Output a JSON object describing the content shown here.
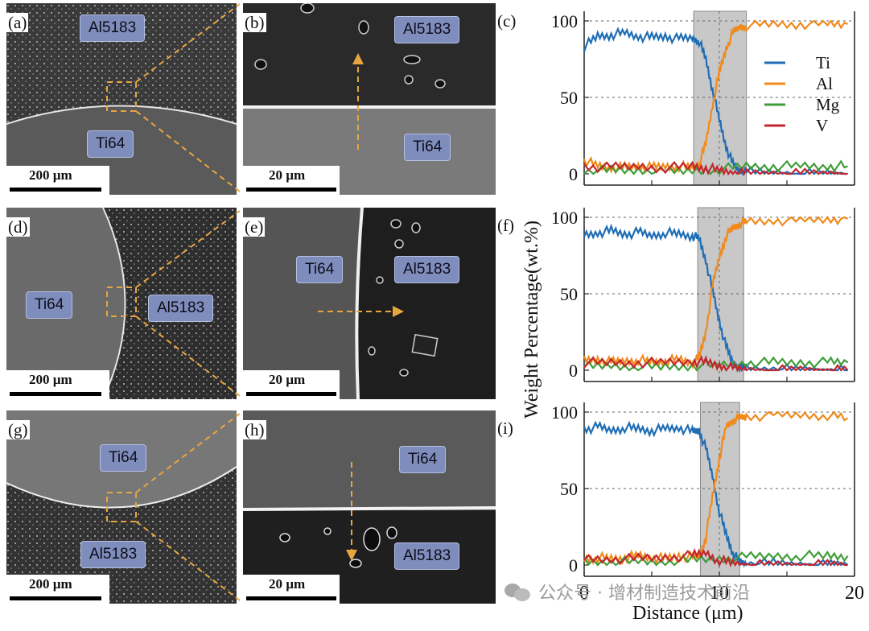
{
  "panels": {
    "a": {
      "label": "(a)",
      "tags": [
        "Al5183",
        "Ti64"
      ],
      "scale": "200 µm"
    },
    "b": {
      "label": "(b)",
      "tags": [
        "Al5183",
        "Ti64"
      ],
      "scale": "20 µm"
    },
    "c": {
      "label": "(c)"
    },
    "d": {
      "label": "(d)",
      "tags": [
        "Ti64",
        "Al5183"
      ],
      "scale": "200 µm"
    },
    "e": {
      "label": "(e)",
      "tags": [
        "Ti64",
        "Al5183"
      ],
      "scale": "20 µm"
    },
    "f": {
      "label": "(f)"
    },
    "g": {
      "label": "(g)",
      "tags": [
        "Ti64",
        "Al5183"
      ],
      "scale": "200 µm"
    },
    "h": {
      "label": "(h)",
      "tags": [
        "Ti64",
        "Al5183"
      ],
      "scale": "20 µm"
    },
    "i": {
      "label": "(i)"
    }
  },
  "axes": {
    "ylabel": "Weight Percentage(wt.%)",
    "xlabel": "Distance (μm)",
    "yticks": [
      "0",
      "50",
      "100"
    ],
    "xticks": [
      "0",
      "10",
      "20"
    ]
  },
  "watermark": "公众号 · 增材制造技术前沿",
  "colors": {
    "Ti": "#1f6db5",
    "Al": "#f08a1c",
    "Mg": "#3f9e3a",
    "V": "#c1272d",
    "band": "#c8c8c8",
    "tag": "#7f8dbd",
    "dash": "#e8a640"
  },
  "chart_data": [
    {
      "type": "line",
      "panel": "(c)",
      "xlim": [
        0,
        20
      ],
      "ylim": [
        0,
        100
      ],
      "grid": "dashed at 50 and 100",
      "legend": "top-right",
      "shaded_band": [
        8.1,
        12.0
      ],
      "series": [
        {
          "name": "Ti",
          "x": [
            0,
            1,
            2,
            3,
            4,
            5,
            6,
            7,
            8,
            8.5,
            9,
            9.5,
            10,
            10.5,
            11,
            11.5,
            12,
            14,
            16,
            18,
            19.5
          ],
          "y": [
            83,
            90,
            91,
            92,
            90,
            89,
            90,
            88,
            89,
            87,
            75,
            55,
            35,
            18,
            6,
            2,
            1,
            1,
            0,
            0,
            0
          ]
        },
        {
          "name": "Al",
          "x": [
            0,
            1,
            2,
            3,
            4,
            5,
            6,
            7,
            8,
            8.5,
            9,
            9.5,
            10,
            10.5,
            11,
            11.5,
            12,
            14,
            16,
            18,
            19.5
          ],
          "y": [
            9,
            5,
            4,
            4,
            5,
            4,
            5,
            5,
            4,
            6,
            20,
            45,
            66,
            82,
            92,
            96,
            97,
            98,
            98,
            98,
            98
          ]
        },
        {
          "name": "Mg",
          "x": [
            0,
            2,
            4,
            6,
            8,
            10,
            12,
            14,
            16,
            18,
            19.5
          ],
          "y": [
            2,
            2,
            2,
            1,
            2,
            3,
            5,
            5,
            5,
            5,
            5
          ]
        },
        {
          "name": "V",
          "x": [
            0,
            2,
            4,
            6,
            8,
            9,
            10,
            11,
            12,
            14,
            16,
            18,
            19.5
          ],
          "y": [
            5,
            4,
            5,
            4,
            5,
            4,
            2,
            1,
            0,
            0,
            0,
            0,
            0
          ]
        }
      ]
    },
    {
      "type": "line",
      "panel": "(f)",
      "xlim": [
        0,
        20
      ],
      "ylim": [
        0,
        100
      ],
      "grid": "dashed at 50 and 100",
      "shaded_band": [
        8.4,
        11.8
      ],
      "series": [
        {
          "name": "Ti",
          "x": [
            0,
            1,
            2,
            3,
            4,
            5,
            6,
            7,
            8,
            8.5,
            9,
            9.5,
            10,
            10.5,
            11,
            11.5,
            12,
            14,
            16,
            18,
            19.5
          ],
          "y": [
            88,
            90,
            91,
            89,
            90,
            88,
            90,
            89,
            88,
            86,
            72,
            52,
            32,
            15,
            5,
            2,
            1,
            1,
            0,
            0,
            0
          ]
        },
        {
          "name": "Al",
          "x": [
            0,
            1,
            2,
            3,
            4,
            5,
            6,
            7,
            8,
            8.5,
            9,
            9.5,
            10,
            10.5,
            11,
            11.5,
            12,
            14,
            16,
            18,
            19.5
          ],
          "y": [
            6,
            7,
            5,
            6,
            7,
            5,
            6,
            7,
            5,
            8,
            25,
            55,
            74,
            88,
            93,
            96,
            97,
            98,
            98,
            99,
            99
          ]
        },
        {
          "name": "Mg",
          "x": [
            0,
            2,
            4,
            6,
            8,
            10,
            12,
            14,
            16,
            18,
            19.5
          ],
          "y": [
            2,
            3,
            2,
            2,
            3,
            3,
            5,
            5,
            5,
            5,
            5
          ]
        },
        {
          "name": "V",
          "x": [
            0,
            2,
            4,
            6,
            8,
            9,
            10,
            11,
            12,
            14,
            16,
            18,
            19.5
          ],
          "y": [
            5,
            5,
            5,
            5,
            6,
            5,
            3,
            1,
            0,
            0,
            0,
            0,
            0
          ]
        }
      ]
    },
    {
      "type": "line",
      "panel": "(i)",
      "xlim": [
        0,
        20
      ],
      "ylim": [
        0,
        100
      ],
      "grid": "dashed at 50 and 100",
      "shaded_band": [
        8.6,
        11.5
      ],
      "series": [
        {
          "name": "Ti",
          "x": [
            0,
            1,
            2,
            3,
            4,
            5,
            6,
            7,
            8,
            8.5,
            9,
            9.5,
            10,
            10.5,
            11,
            11.5,
            12,
            14,
            16,
            18,
            19.5
          ],
          "y": [
            89,
            90,
            88,
            90,
            89,
            88,
            89,
            90,
            87,
            88,
            76,
            58,
            35,
            20,
            8,
            2,
            1,
            1,
            0,
            0,
            0
          ]
        },
        {
          "name": "Al",
          "x": [
            0,
            1,
            2,
            3,
            4,
            5,
            6,
            7,
            8,
            8.5,
            9,
            9.5,
            10,
            10.5,
            11,
            11.5,
            12,
            14,
            16,
            18,
            19.5
          ],
          "y": [
            4,
            5,
            4,
            5,
            6,
            5,
            4,
            6,
            5,
            6,
            18,
            45,
            70,
            90,
            95,
            96,
            97,
            98,
            98,
            98,
            96
          ]
        },
        {
          "name": "Mg",
          "x": [
            0,
            2,
            4,
            6,
            8,
            10,
            12,
            14,
            16,
            18,
            19.5
          ],
          "y": [
            2,
            2,
            2,
            2,
            3,
            4,
            5,
            6,
            6,
            6,
            6
          ]
        },
        {
          "name": "V",
          "x": [
            0,
            2,
            4,
            6,
            8,
            9,
            10,
            11,
            12,
            14,
            16,
            18,
            19.5
          ],
          "y": [
            4,
            4,
            4,
            5,
            6,
            8,
            3,
            1,
            0,
            0,
            0,
            0,
            0
          ]
        }
      ]
    }
  ]
}
